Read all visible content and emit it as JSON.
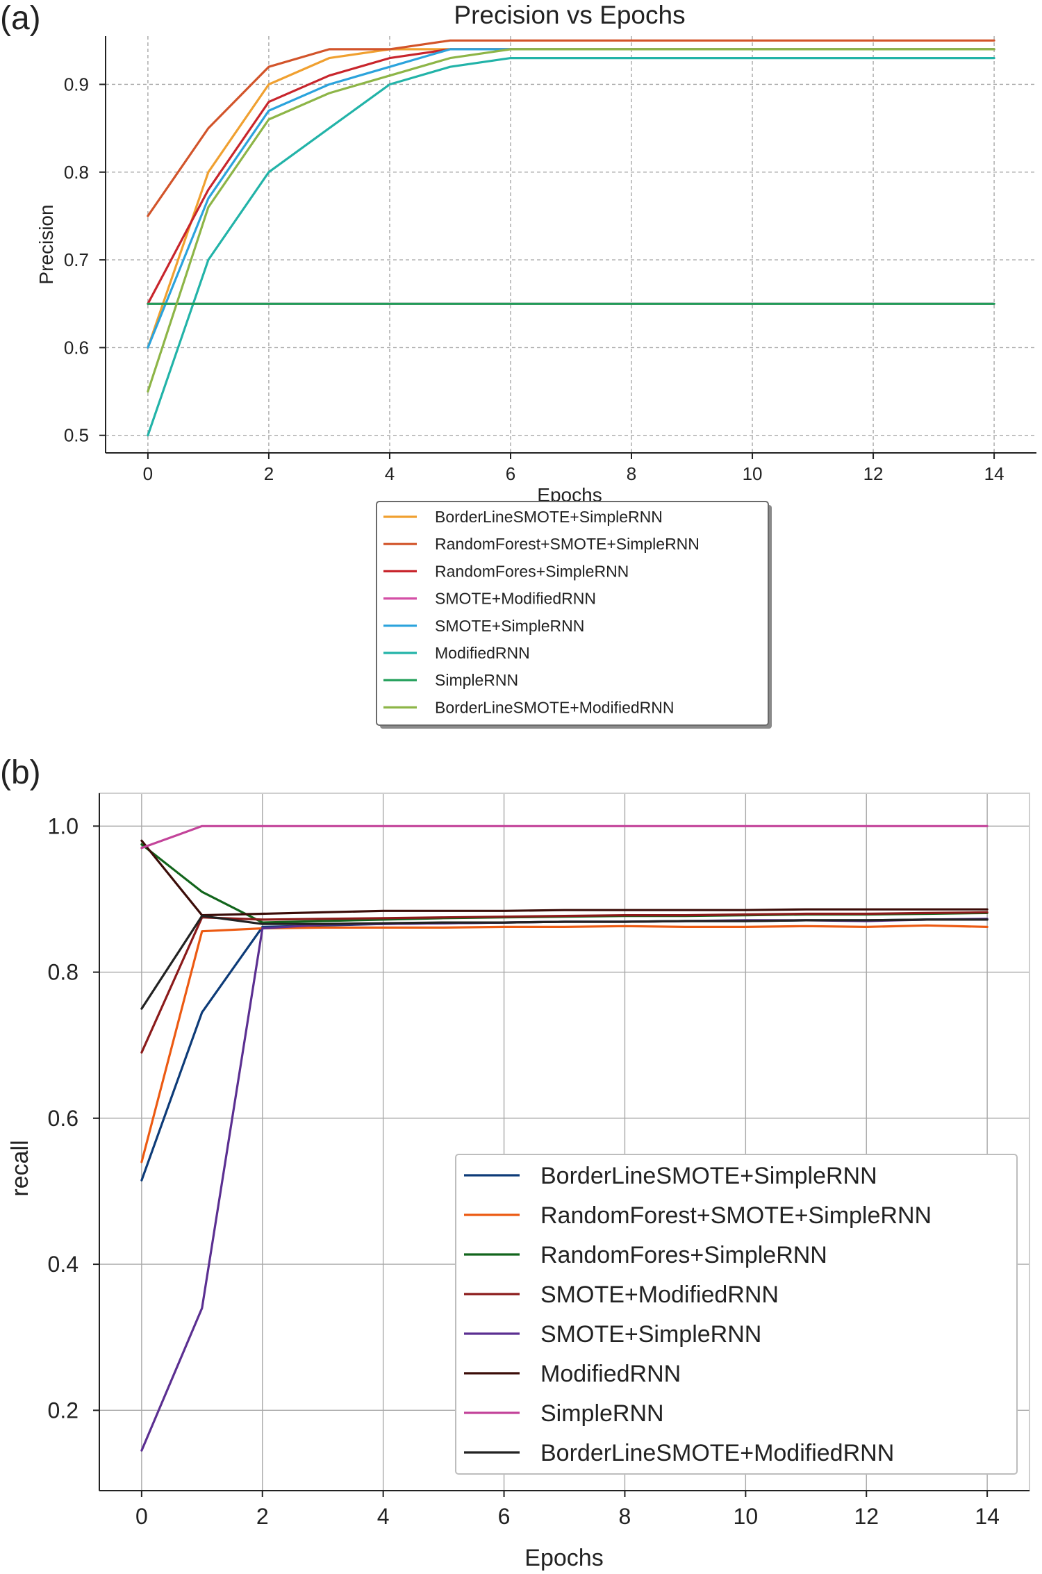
{
  "chart_data": [
    {
      "panel_label": "(a)",
      "type": "line",
      "title": "Precision vs Epochs",
      "xlabel": "Epochs",
      "ylabel": "Precision",
      "xlim": [
        -0.7,
        14.7
      ],
      "ylim": [
        0.48,
        0.955
      ],
      "xticks": [
        0,
        2,
        4,
        6,
        8,
        10,
        12,
        14
      ],
      "yticks": [
        0.5,
        0.6,
        0.7,
        0.8,
        0.9
      ],
      "grid": true,
      "legend_position": "below",
      "x": [
        0,
        1,
        2,
        3,
        4,
        5,
        6,
        7,
        8,
        9,
        10,
        11,
        12,
        13,
        14
      ],
      "series": [
        {
          "name": "BorderLineSMOTE+SimpleRNN",
          "color": "#f0a030",
          "values": [
            0.6,
            0.8,
            0.9,
            0.93,
            0.94,
            0.94,
            0.94,
            0.94,
            0.94,
            0.94,
            0.94,
            0.94,
            0.94,
            0.94,
            0.94
          ]
        },
        {
          "name": "RandomForest+SMOTE+SimpleRNN",
          "color": "#d2542a",
          "values": [
            0.75,
            0.85,
            0.92,
            0.94,
            0.94,
            0.95,
            0.95,
            0.95,
            0.95,
            0.95,
            0.95,
            0.95,
            0.95,
            0.95,
            0.95
          ]
        },
        {
          "name": "RandomFores+SimpleRNN",
          "color": "#c8252c",
          "values": [
            0.65,
            0.78,
            0.88,
            0.91,
            0.93,
            0.94,
            0.94,
            0.94,
            0.94,
            0.94,
            0.94,
            0.94,
            0.94,
            0.94,
            0.94
          ]
        },
        {
          "name": "SMOTE+ModifiedRNN",
          "color": "#d44fa6",
          "values": [
            0.65,
            0.65,
            0.65,
            0.65,
            0.65,
            0.65,
            0.65,
            0.65,
            0.65,
            0.65,
            0.65,
            0.65,
            0.65,
            0.65,
            0.65
          ]
        },
        {
          "name": "SMOTE+SimpleRNN",
          "color": "#2ba3dc",
          "values": [
            0.6,
            0.77,
            0.87,
            0.9,
            0.92,
            0.94,
            0.94,
            0.94,
            0.94,
            0.94,
            0.94,
            0.94,
            0.94,
            0.94,
            0.94
          ]
        },
        {
          "name": "ModifiedRNN",
          "color": "#22b3a8",
          "values": [
            0.5,
            0.7,
            0.8,
            0.85,
            0.9,
            0.92,
            0.93,
            0.93,
            0.93,
            0.93,
            0.93,
            0.93,
            0.93,
            0.93,
            0.93
          ]
        },
        {
          "name": "SimpleRNN",
          "color": "#1f9e58",
          "values": [
            0.65,
            0.65,
            0.65,
            0.65,
            0.65,
            0.65,
            0.65,
            0.65,
            0.65,
            0.65,
            0.65,
            0.65,
            0.65,
            0.65,
            0.65
          ]
        },
        {
          "name": "BorderLineSMOTE+ModifiedRNN",
          "color": "#8db547",
          "values": [
            0.55,
            0.76,
            0.86,
            0.89,
            0.91,
            0.93,
            0.94,
            0.94,
            0.94,
            0.94,
            0.94,
            0.94,
            0.94,
            0.94,
            0.94
          ]
        }
      ]
    },
    {
      "panel_label": "(b)",
      "type": "line",
      "title": "",
      "xlabel": "Epochs",
      "ylabel": "recall",
      "xlim": [
        -0.7,
        14.7
      ],
      "ylim": [
        0.09,
        1.045
      ],
      "xticks": [
        0,
        2,
        4,
        6,
        8,
        10,
        12,
        14
      ],
      "yticks": [
        0.2,
        0.4,
        0.6,
        0.8,
        1.0
      ],
      "ytick_labels": [
        "0.2",
        "0.4",
        "0.6",
        "0.8",
        "1.0"
      ],
      "grid": true,
      "legend_position": "lower right",
      "x": [
        0,
        1,
        2,
        3,
        4,
        5,
        6,
        7,
        8,
        9,
        10,
        11,
        12,
        13,
        14
      ],
      "series": [
        {
          "name": "BorderLineSMOTE+SimpleRNN",
          "color": "#0d3b78",
          "values": [
            0.515,
            0.745,
            0.862,
            0.864,
            0.866,
            0.867,
            0.868,
            0.869,
            0.869,
            0.87,
            0.87,
            0.871,
            0.871,
            0.872,
            0.872
          ]
        },
        {
          "name": "RandomForest+SMOTE+SimpleRNN",
          "color": "#ec5a12",
          "values": [
            0.54,
            0.856,
            0.86,
            0.861,
            0.861,
            0.861,
            0.862,
            0.862,
            0.863,
            0.862,
            0.862,
            0.863,
            0.862,
            0.864,
            0.862
          ]
        },
        {
          "name": "RandomFores+SimpleRNN",
          "color": "#12651c",
          "values": [
            0.975,
            0.91,
            0.868,
            0.87,
            0.872,
            0.874,
            0.875,
            0.876,
            0.877,
            0.877,
            0.878,
            0.879,
            0.879,
            0.88,
            0.881
          ]
        },
        {
          "name": "SMOTE+ModifiedRNN",
          "color": "#8b1a1a",
          "values": [
            0.69,
            0.875,
            0.872,
            0.873,
            0.874,
            0.875,
            0.876,
            0.877,
            0.878,
            0.878,
            0.879,
            0.88,
            0.88,
            0.881,
            0.882
          ]
        },
        {
          "name": "SMOTE+SimpleRNN",
          "color": "#5b2f91",
          "values": [
            0.145,
            0.34,
            0.86,
            0.865,
            0.866,
            0.867,
            0.868,
            0.869,
            0.869,
            0.87,
            0.871,
            0.871,
            0.87,
            0.872,
            0.873
          ]
        },
        {
          "name": "ModifiedRNN",
          "color": "#3b0c08",
          "values": [
            0.98,
            0.878,
            0.88,
            0.882,
            0.884,
            0.884,
            0.884,
            0.885,
            0.885,
            0.885,
            0.885,
            0.886,
            0.886,
            0.886,
            0.886
          ]
        },
        {
          "name": "SimpleRNN",
          "color": "#c3449a",
          "values": [
            0.97,
            1.0,
            1.0,
            1.0,
            1.0,
            1.0,
            1.0,
            1.0,
            1.0,
            1.0,
            1.0,
            1.0,
            1.0,
            1.0,
            1.0
          ]
        },
        {
          "name": "BorderLineSMOTE+ModifiedRNN",
          "color": "#222222",
          "values": [
            0.75,
            0.877,
            0.866,
            0.866,
            0.867,
            0.868,
            0.868,
            0.869,
            0.869,
            0.87,
            0.87,
            0.871,
            0.871,
            0.872,
            0.872
          ]
        }
      ]
    }
  ]
}
